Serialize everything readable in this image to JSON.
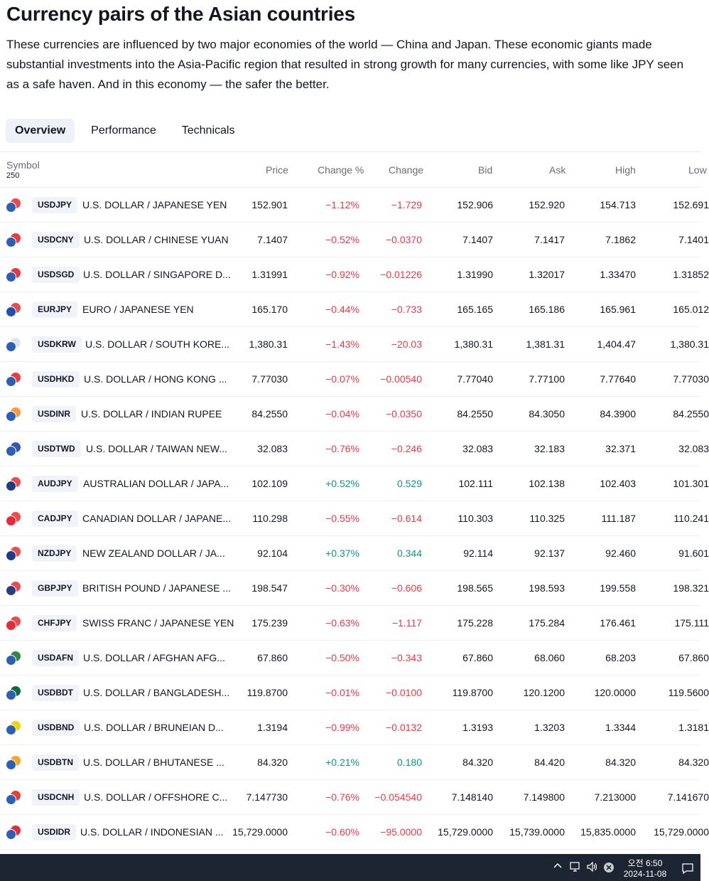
{
  "page": {
    "title": "Currency pairs of the Asian countries",
    "description": "These currencies are influenced by two major economies of the world — China and Japan. These economic giants made substantial investments into the Asia-Pacific region that resulted in strong growth for many currencies, with some like JPY seen as a safe haven. And in this economy — the safer the better."
  },
  "tabs": [
    {
      "label": "Overview",
      "active": true
    },
    {
      "label": "Performance",
      "active": false
    },
    {
      "label": "Technicals",
      "active": false
    }
  ],
  "table": {
    "headers": {
      "symbol": "Symbol",
      "count": "250",
      "price": "Price",
      "change_pct": "Change %",
      "change": "Change",
      "bid": "Bid",
      "ask": "Ask",
      "high": "High",
      "low": "Low"
    },
    "rows": [
      {
        "ticker": "USDJPY",
        "name": "U.S. DOLLAR / JAPANESE YEN",
        "price": "152.901",
        "change_pct": "−1.12%",
        "change": "−1.729",
        "bid": "152.906",
        "ask": "152.920",
        "high": "154.713",
        "low": "152.691",
        "dir": "neg",
        "flag_colors": [
          "#2b5fb8",
          "#f0484b"
        ]
      },
      {
        "ticker": "USDCNY",
        "name": "U.S. DOLLAR / CHINESE YUAN",
        "price": "7.1407",
        "change_pct": "−0.52%",
        "change": "−0.0370",
        "bid": "7.1407",
        "ask": "7.1417",
        "high": "7.1862",
        "low": "7.1401",
        "dir": "neg",
        "flag_colors": [
          "#2b5fb8",
          "#ee3b3b"
        ]
      },
      {
        "ticker": "USDSGD",
        "name": "U.S. DOLLAR / SINGAPORE D...",
        "price": "1.31991",
        "change_pct": "−0.92%",
        "change": "−0.01226",
        "bid": "1.31990",
        "ask": "1.32017",
        "high": "1.33470",
        "low": "1.31852",
        "dir": "neg",
        "flag_colors": [
          "#2b5fb8",
          "#ef3340"
        ]
      },
      {
        "ticker": "EURJPY",
        "name": "EURO / JAPANESE YEN",
        "price": "165.170",
        "change_pct": "−0.44%",
        "change": "−0.733",
        "bid": "165.165",
        "ask": "165.186",
        "high": "165.961",
        "low": "165.012",
        "dir": "neg",
        "flag_colors": [
          "#1f4fb4",
          "#f0484b"
        ]
      },
      {
        "ticker": "USDKRW",
        "name": "U.S. DOLLAR / SOUTH KORE...",
        "price": "1,380.31",
        "change_pct": "−1.43%",
        "change": "−20.03",
        "bid": "1,380.31",
        "ask": "1,381.31",
        "high": "1,404.47",
        "low": "1,380.31",
        "dir": "neg",
        "flag_colors": [
          "#2b5fb8",
          "#dfe3ec"
        ]
      },
      {
        "ticker": "USDHKD",
        "name": "U.S. DOLLAR / HONG KONG ...",
        "price": "7.77030",
        "change_pct": "−0.07%",
        "change": "−0.00540",
        "bid": "7.77040",
        "ask": "7.77100",
        "high": "7.77640",
        "low": "7.77030",
        "dir": "neg",
        "flag_colors": [
          "#2b5fb8",
          "#ee3b3b"
        ]
      },
      {
        "ticker": "USDINR",
        "name": "U.S. DOLLAR / INDIAN RUPEE",
        "price": "84.2550",
        "change_pct": "−0.04%",
        "change": "−0.0350",
        "bid": "84.2550",
        "ask": "84.3050",
        "high": "84.3900",
        "low": "84.2550",
        "dir": "neg",
        "flag_colors": [
          "#2b5fb8",
          "#ff9933"
        ]
      },
      {
        "ticker": "USDTWD",
        "name": "U.S. DOLLAR / TAIWAN NEW...",
        "price": "32.083",
        "change_pct": "−0.76%",
        "change": "−0.246",
        "bid": "32.083",
        "ask": "32.183",
        "high": "32.371",
        "low": "32.083",
        "dir": "neg",
        "flag_colors": [
          "#2b5fb8",
          "#3457b8"
        ]
      },
      {
        "ticker": "AUDJPY",
        "name": "AUSTRALIAN DOLLAR / JAPA...",
        "price": "102.109",
        "change_pct": "+0.52%",
        "change": "0.529",
        "bid": "102.111",
        "ask": "102.138",
        "high": "102.403",
        "low": "101.301",
        "dir": "pos",
        "flag_colors": [
          "#1e3a8a",
          "#f0484b"
        ]
      },
      {
        "ticker": "CADJPY",
        "name": "CANADIAN DOLLAR / JAPANE...",
        "price": "110.298",
        "change_pct": "−0.55%",
        "change": "−0.614",
        "bid": "110.303",
        "ask": "110.325",
        "high": "111.187",
        "low": "110.241",
        "dir": "neg",
        "flag_colors": [
          "#e8293a",
          "#f0484b"
        ]
      },
      {
        "ticker": "NZDJPY",
        "name": "NEW ZEALAND DOLLAR / JA...",
        "price": "92.104",
        "change_pct": "+0.37%",
        "change": "0.344",
        "bid": "92.114",
        "ask": "92.137",
        "high": "92.460",
        "low": "91.601",
        "dir": "pos",
        "flag_colors": [
          "#1e3a8a",
          "#f0484b"
        ]
      },
      {
        "ticker": "GBPJPY",
        "name": "BRITISH POUND / JAPANESE ...",
        "price": "198.547",
        "change_pct": "−0.30%",
        "change": "−0.606",
        "bid": "198.565",
        "ask": "198.593",
        "high": "199.558",
        "low": "198.321",
        "dir": "neg",
        "flag_colors": [
          "#283b86",
          "#f0484b"
        ]
      },
      {
        "ticker": "CHFJPY",
        "name": "SWISS FRANC / JAPANESE YEN",
        "price": "175.239",
        "change_pct": "−0.63%",
        "change": "−1.117",
        "bid": "175.228",
        "ask": "175.284",
        "high": "176.461",
        "low": "175.111",
        "dir": "neg",
        "flag_colors": [
          "#e8293a",
          "#f0484b"
        ]
      },
      {
        "ticker": "USDAFN",
        "name": "U.S. DOLLAR / AFGHAN AFG...",
        "price": "67.860",
        "change_pct": "−0.50%",
        "change": "−0.343",
        "bid": "67.860",
        "ask": "68.060",
        "high": "68.203",
        "low": "67.860",
        "dir": "neg",
        "flag_colors": [
          "#2b5fb8",
          "#2f8a3d"
        ]
      },
      {
        "ticker": "USDBDT",
        "name": "U.S. DOLLAR / BANGLADESH...",
        "price": "119.8700",
        "change_pct": "−0.01%",
        "change": "−0.0100",
        "bid": "119.8700",
        "ask": "120.1200",
        "high": "120.0000",
        "low": "119.5600",
        "dir": "neg",
        "flag_colors": [
          "#2b5fb8",
          "#0c6b3c"
        ]
      },
      {
        "ticker": "USDBND",
        "name": "U.S. DOLLAR / BRUNEIAN D...",
        "price": "1.3194",
        "change_pct": "−0.99%",
        "change": "−0.0132",
        "bid": "1.3193",
        "ask": "1.3203",
        "high": "1.3344",
        "low": "1.3181",
        "dir": "neg",
        "flag_colors": [
          "#2b5fb8",
          "#f7d200"
        ]
      },
      {
        "ticker": "USDBTN",
        "name": "U.S. DOLLAR / BHUTANESE ...",
        "price": "84.320",
        "change_pct": "+0.21%",
        "change": "0.180",
        "bid": "84.320",
        "ask": "84.420",
        "high": "84.320",
        "low": "84.320",
        "dir": "pos",
        "flag_colors": [
          "#2b5fb8",
          "#f5a623"
        ]
      },
      {
        "ticker": "USDCNH",
        "name": "U.S. DOLLAR / OFFSHORE C...",
        "price": "7.147730",
        "change_pct": "−0.76%",
        "change": "−0.054540",
        "bid": "7.148140",
        "ask": "7.149800",
        "high": "7.213000",
        "low": "7.141670",
        "dir": "neg",
        "flag_colors": [
          "#2b5fb8",
          "#ee3b3b"
        ]
      },
      {
        "ticker": "USDIDR",
        "name": "U.S. DOLLAR / INDONESIAN ...",
        "price": "15,729.0000",
        "change_pct": "−0.60%",
        "change": "−95.0000",
        "bid": "15,729.0000",
        "ask": "15,739.0000",
        "high": "15,835.0000",
        "low": "15,729.0000",
        "dir": "neg",
        "flag_colors": [
          "#2b5fb8",
          "#e8293a"
        ]
      }
    ]
  },
  "taskbar": {
    "time": "오전 6:50",
    "date": "2024-11-08",
    "icons": [
      "chevron-up-icon",
      "network-icon",
      "volume-icon",
      "close-circle-icon",
      "notification-icon"
    ]
  }
}
